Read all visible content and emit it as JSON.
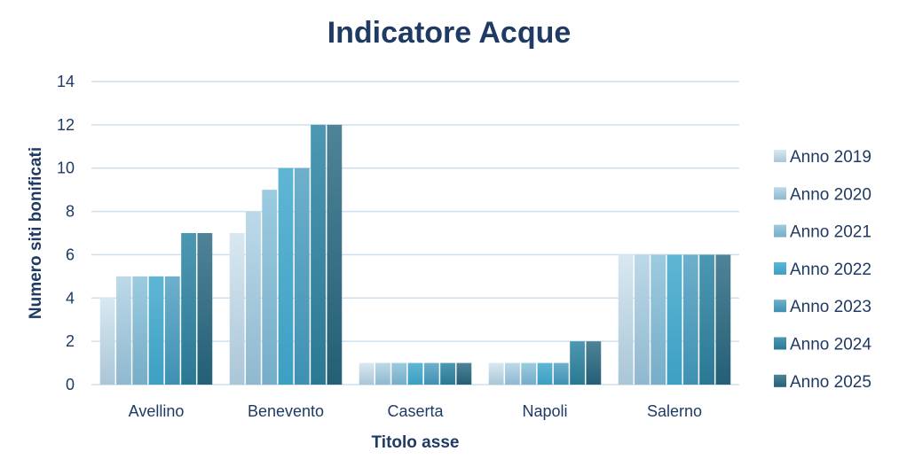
{
  "chart_data": {
    "type": "bar",
    "title": "Indicatore Acque",
    "xlabel": "Titolo asse",
    "ylabel": "Numero siti bonificati",
    "ylim": [
      0,
      14
    ],
    "yticks": [
      "0",
      "2",
      "4",
      "6",
      "8",
      "10",
      "12",
      "14"
    ],
    "grid": true,
    "legend_position": "right",
    "categories": [
      "Avellino",
      "Benevento",
      "Caserta",
      "Napoli",
      "Salerno"
    ],
    "series": [
      {
        "name": "Anno 2019",
        "values": [
          4,
          7,
          1,
          1,
          6
        ],
        "color_top": "#d8e8f1",
        "color_bottom": "#aac6d7"
      },
      {
        "name": "Anno 2020",
        "values": [
          5,
          8,
          1,
          1,
          6
        ],
        "color_top": "#bcd9e8",
        "color_bottom": "#8fb8cf"
      },
      {
        "name": "Anno 2021",
        "values": [
          5,
          9,
          1,
          1,
          6
        ],
        "color_top": "#9ccbe0",
        "color_bottom": "#76adc8"
      },
      {
        "name": "Anno 2022",
        "values": [
          5,
          10,
          1,
          1,
          6
        ],
        "color_top": "#5fb6d4",
        "color_bottom": "#3d9fc3"
      },
      {
        "name": "Anno 2023",
        "values": [
          5,
          10,
          1,
          1,
          6
        ],
        "color_top": "#6eb0cc",
        "color_bottom": "#3f90b3"
      },
      {
        "name": "Anno 2024",
        "values": [
          7,
          12,
          1,
          2,
          6
        ],
        "color_top": "#4c98b2",
        "color_bottom": "#2b7894"
      },
      {
        "name": "Anno 2025",
        "values": [
          7,
          12,
          1,
          2,
          6
        ],
        "color_top": "#4f8397",
        "color_bottom": "#245f76"
      }
    ]
  }
}
